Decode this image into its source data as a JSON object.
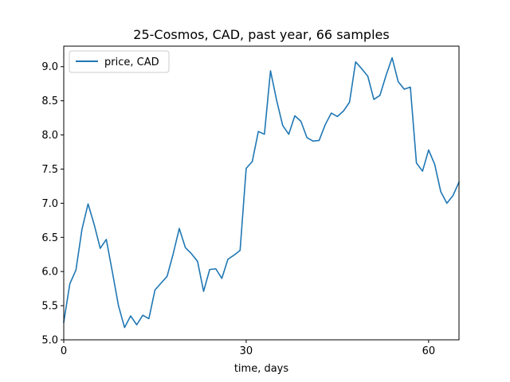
{
  "chart_data": {
    "type": "line",
    "title": "25-Cosmos, CAD, past year, 66 samples",
    "xlabel": "time, days",
    "ylabel": "",
    "xlim": [
      0,
      65
    ],
    "ylim": [
      5.0,
      9.3
    ],
    "xticks": [
      0,
      30,
      60
    ],
    "yticks": [
      5.0,
      5.5,
      6.0,
      6.5,
      7.0,
      7.5,
      8.0,
      8.5,
      9.0
    ],
    "grid": false,
    "legend": "top-left",
    "series": [
      {
        "name": "price, CAD",
        "color": "#1f77b4",
        "x": [
          0,
          1,
          2,
          3,
          4,
          5,
          6,
          7,
          8,
          9,
          10,
          11,
          12,
          13,
          14,
          15,
          16,
          17,
          18,
          19,
          20,
          21,
          22,
          23,
          24,
          25,
          26,
          27,
          28,
          29,
          30,
          31,
          32,
          33,
          34,
          35,
          36,
          37,
          38,
          39,
          40,
          41,
          42,
          43,
          44,
          45,
          46,
          47,
          48,
          49,
          50,
          51,
          52,
          53,
          54,
          55,
          56,
          57,
          58,
          59,
          60,
          61,
          62,
          63,
          64,
          65
        ],
        "values": [
          5.26,
          5.82,
          6.02,
          6.62,
          6.99,
          6.69,
          6.34,
          6.47,
          5.99,
          5.5,
          5.18,
          5.35,
          5.22,
          5.36,
          5.31,
          5.73,
          5.83,
          5.93,
          6.26,
          6.63,
          6.35,
          6.26,
          6.15,
          5.71,
          6.03,
          6.04,
          5.9,
          6.18,
          6.24,
          6.31,
          7.51,
          7.61,
          8.05,
          8.01,
          8.94,
          8.51,
          8.14,
          8.01,
          8.28,
          8.2,
          7.96,
          7.91,
          7.92,
          8.15,
          8.32,
          8.27,
          8.35,
          8.48,
          9.07,
          8.97,
          8.86,
          8.52,
          8.58,
          8.87,
          9.13,
          8.78,
          8.67,
          8.7,
          7.59,
          7.47,
          7.78,
          7.57,
          7.17,
          7.0,
          7.11,
          7.31
        ]
      }
    ]
  }
}
